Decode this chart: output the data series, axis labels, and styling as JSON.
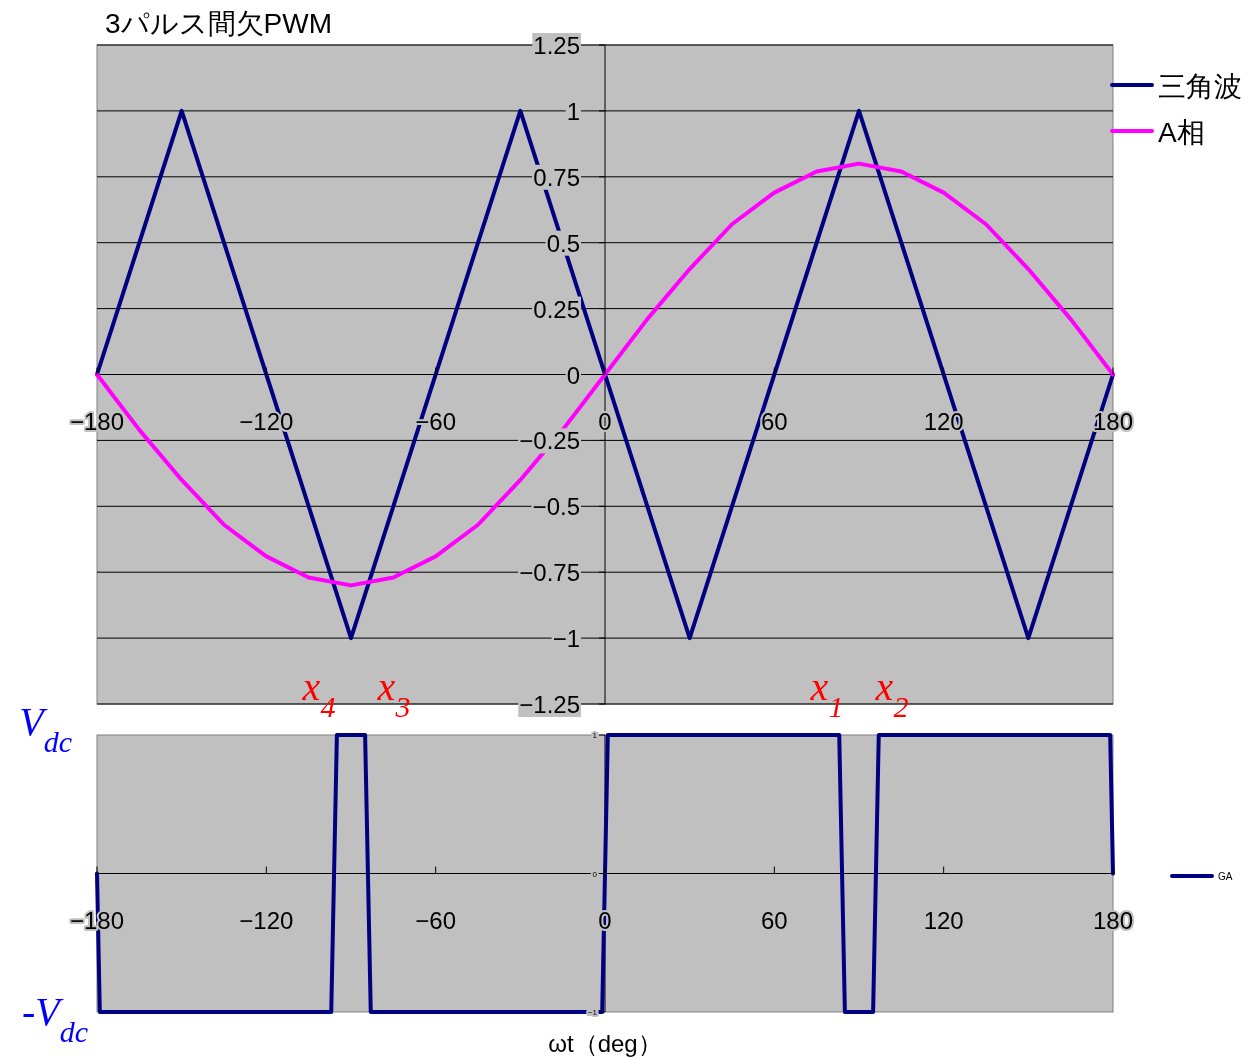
{
  "chart_data": [
    {
      "type": "line",
      "title": "3パルス間欠PWM",
      "xlim": [
        -180,
        180
      ],
      "ylim": [
        -1.25,
        1.25
      ],
      "xticks": [
        {
          "value": -180,
          "label": "−180"
        },
        {
          "value": -120,
          "label": "−120"
        },
        {
          "value": -60,
          "label": "−60"
        },
        0,
        60,
        120,
        180
      ],
      "yticks": [
        {
          "value": -1.25,
          "label": "−1.25"
        },
        {
          "value": -1,
          "label": "−1"
        },
        {
          "value": -0.75,
          "label": "−0.75"
        },
        {
          "value": -0.5,
          "label": "−0.5"
        },
        {
          "value": -0.25,
          "label": "−0.25"
        },
        0,
        0.25,
        0.5,
        0.75,
        1,
        1.25
      ],
      "grid": "y",
      "legend": "right",
      "line_style": "solid",
      "marker": "none",
      "series": [
        {
          "name": "三角波",
          "color": "#000080",
          "x": [
            -180,
            -150,
            -90,
            -30,
            30,
            90,
            150,
            180
          ],
          "values": [
            0,
            1,
            -1,
            1,
            -1,
            1,
            -1,
            0
          ]
        },
        {
          "name": "A相",
          "color": "#ff00ff",
          "x": [
            -180,
            -165,
            -150,
            -135,
            -120,
            -105,
            -90,
            -75,
            -60,
            -45,
            -30,
            -15,
            0,
            15,
            30,
            45,
            60,
            75,
            90,
            105,
            120,
            135,
            150,
            165,
            180
          ],
          "values": [
            0,
            -0.21,
            -0.4,
            -0.57,
            -0.69,
            -0.77,
            -0.8,
            -0.77,
            -0.69,
            -0.57,
            -0.4,
            -0.21,
            0,
            0.21,
            0.4,
            0.57,
            0.69,
            0.77,
            0.8,
            0.77,
            0.69,
            0.57,
            0.4,
            0.21,
            0
          ]
        }
      ],
      "annotations": [
        "x$_{4}$",
        "x$_{3}$",
        "x$_{1}$",
        "x$_{2}$"
      ]
    },
    {
      "type": "line",
      "xlabel": "ωt（deg）",
      "xlim": [
        -180,
        180
      ],
      "ylim": [
        -1,
        1
      ],
      "xticks": [
        {
          "value": -180,
          "label": "−180"
        },
        {
          "value": -120,
          "label": "−120"
        },
        {
          "value": -60,
          "label": "−60"
        },
        0,
        60,
        120,
        180
      ],
      "yticks": [
        {
          "value": -1,
          "label": "−1"
        },
        0,
        1
      ],
      "legend": "right",
      "line_style": "solid",
      "marker": "none",
      "series": [
        {
          "name": "GA",
          "color": "#000080",
          "x": [
            -180,
            -179,
            -97,
            -95,
            -85,
            -83,
            -1,
            1,
            83,
            85,
            95,
            97,
            179,
            180
          ],
          "values": [
            0,
            -1,
            -1,
            1,
            1,
            -1,
            -1,
            1,
            1,
            -1,
            -1,
            1,
            1,
            0
          ]
        }
      ],
      "annotations": [
        "V$_{dc}$",
        "-V$_{dc}$"
      ]
    }
  ]
}
